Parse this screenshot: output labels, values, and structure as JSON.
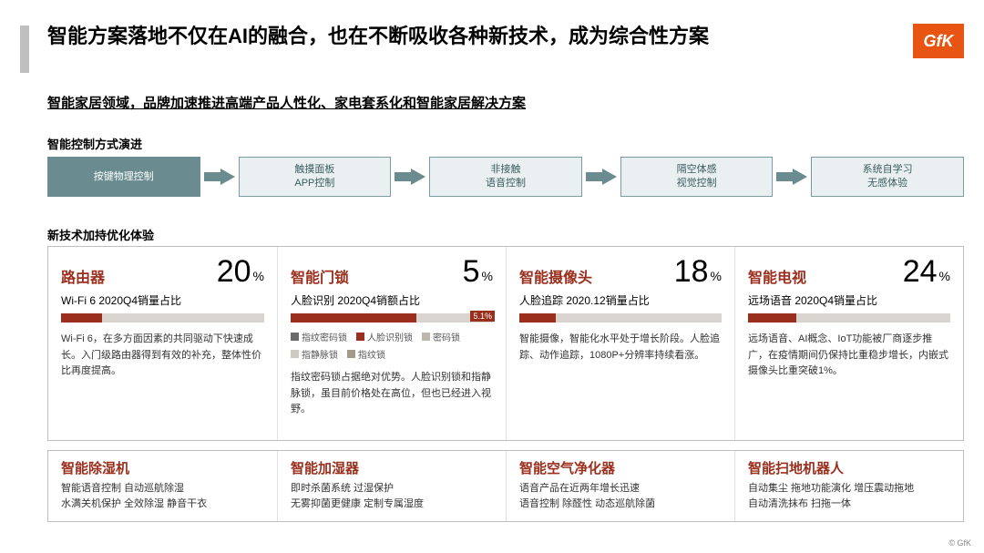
{
  "colors": {
    "accent_bar": "#bfbfbf",
    "brand": "#e85412",
    "heading": "#9a2f1e",
    "flow_filled_bg": "#6a8c90",
    "flow_outline": "#7a9ba0",
    "flow_light_bg": "#eaf0f1",
    "flow_text": "#3a5c61",
    "bar_bg": "#d9d4cf",
    "bar_fill": "#9a2f1e",
    "border": "#bfbfbf"
  },
  "logo_text": "GfK",
  "title": "智能方案落地不仅在AI的融合，也在不断吸收各种新技术，成为综合性方案",
  "subtitle": "智能家居领域，品牌加速推进高端产品人性化、家电套系化和智能家居解决方案",
  "section1_label": "智能控制方式演进",
  "flow": [
    {
      "lines": [
        "按键物理控制"
      ],
      "filled": true
    },
    {
      "lines": [
        "触摸面板",
        "APP控制"
      ],
      "filled": false
    },
    {
      "lines": [
        "非接触",
        "语音控制"
      ],
      "filled": false
    },
    {
      "lines": [
        "隔空体感",
        "视觉控制"
      ],
      "filled": false
    },
    {
      "lines": [
        "系统自学习",
        "无感体验"
      ],
      "filled": false
    }
  ],
  "section2_label": "新技术加持优化体验",
  "cards": [
    {
      "title": "路由器",
      "value": "20",
      "sub": "Wi-Fi 6 2020Q4销量占比",
      "bar_fill_pct": 20,
      "bar_label": "",
      "legend": [],
      "body": "Wi-Fi 6，在多方面因素的共同驱动下快速成长。入门级路由器得到有效的补充，整体性价比再度提高。"
    },
    {
      "title": "智能门锁",
      "value": "5",
      "sub": "人脸识别 2020Q4销额占比",
      "bar_fill_pct": 62,
      "bar_label": "5.1%",
      "legend": [
        {
          "c": "#6a6a6a",
          "t": "指纹密码锁"
        },
        {
          "c": "#9a2f1e",
          "t": "人脸识别锁"
        },
        {
          "c": "#bcb6ad",
          "t": "密码锁"
        },
        {
          "c": "#cfc9bf",
          "t": "指静脉锁"
        },
        {
          "c": "#a39a8b",
          "t": "指纹锁"
        }
      ],
      "body": "指纹密码锁占据绝对优势。人脸识别锁和指静脉锁，虽目前价格处在高位，但也已经进入视野。"
    },
    {
      "title": "智能摄像头",
      "value": "18",
      "sub": "人脸追踪 2020.12销量占比",
      "bar_fill_pct": 18,
      "bar_label": "",
      "legend": [],
      "body": "智能摄像，智能化水平处于增长阶段。人脸追踪、动作追踪，1080P+分辨率持续看涨。"
    },
    {
      "title": "智能电视",
      "value": "24",
      "sub": "远场语音 2020Q4销量占比",
      "bar_fill_pct": 24,
      "bar_label": "",
      "legend": [],
      "body": "远场语音、AI概念、IoT功能被厂商逐步推广，在疫情期间仍保持比重稳步增长，内嵌式摄像头比重突破1%。"
    }
  ],
  "cards2": [
    {
      "title": "智能除湿机",
      "body": "智能语音控制 自动巡航除湿\n水满关机保护 全效除湿 静音干衣"
    },
    {
      "title": "智能加湿器",
      "body": "即时杀菌系统 过湿保护\n无雾抑菌更健康 定制专属湿度"
    },
    {
      "title": "智能空气净化器",
      "body": "语音产品在近两年增长迅速\n语音控制 除醛性 动态巡航除菌"
    },
    {
      "title": "智能扫地机器人",
      "body": "自动集尘 拖地功能演化 增压震动拖地\n自动清洗抹布 扫拖一体"
    }
  ],
  "copyright": "© GfK"
}
